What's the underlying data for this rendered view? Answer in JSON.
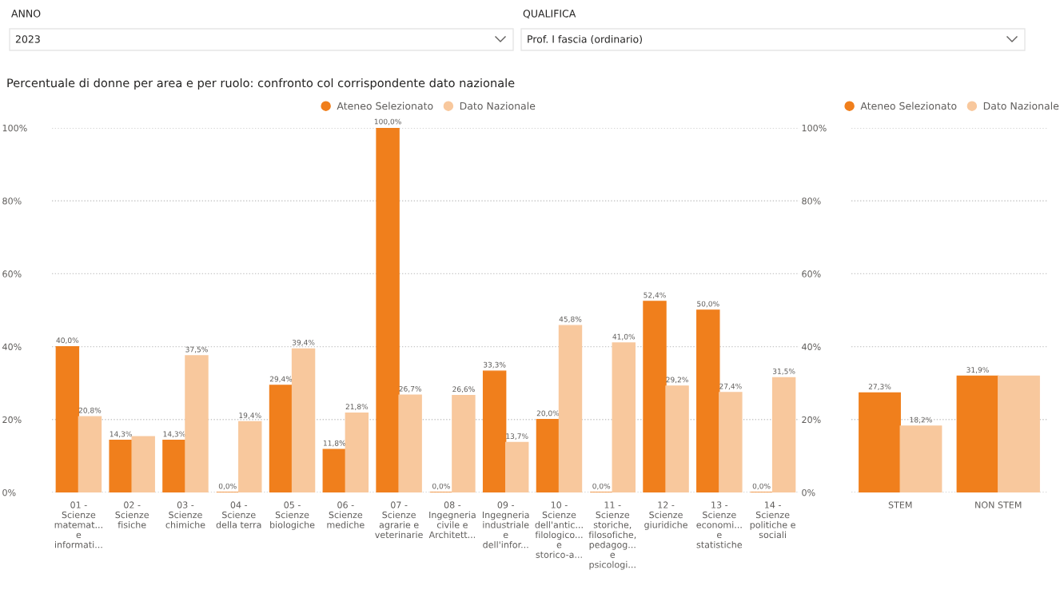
{
  "chart_data": [
    {
      "type": "other",
      "annotations": [
        "ANNO",
        "2023",
        "QUALIFICA",
        "Prof. I fascia (ordinario)"
      ]
    },
    {
      "type": "bar",
      "title": "Percentuale di donne per area e per ruolo: confronto col corrispondente dato nazionale",
      "categories": [
        "01 -\nScienze\nmatemat...\ne\ninformati...",
        "02 -\nScienze\nfisiche",
        "03 -\nScienze\nchimiche",
        "04 -\nScienze\ndella terra",
        "05 -\nScienze\nbiologiche",
        "06 -\nScienze\nmediche",
        "07 -\nScienze\nagrarie e\nveterinarie",
        "08 -\nIngegneria\ncivile e\nArchitett...",
        "09 -\nIngegneria\nindustriale\ne\ndell'infor...",
        "10 -\nScienze\ndell'antic...\nfilologico...\ne\nstorico-a...",
        "11 -\nScienze\nstoriche,\nfilosofiche,\npedagog...\ne\npsicologi...",
        "12 -\nScienze\ngiuridiche",
        "13 -\nScienze\neconomi...\ne\nstatistiche",
        "14 -\nScienze\npolitiche e\nsociali"
      ],
      "series": [
        {
          "name": "Ateneo Selezionato",
          "color": "#f07f1c",
          "values": [
            40.0,
            14.3,
            14.3,
            0.0,
            29.4,
            11.8,
            100.0,
            0.0,
            33.3,
            20.0,
            0.0,
            52.4,
            50.0,
            0.0
          ],
          "value_labels": [
            "40,0%",
            "14,3%",
            "14,3%",
            "0,0%",
            "29,4%",
            "11,8%",
            "100,0%",
            "0,0%",
            "33,3%",
            "20,0%",
            "0,0%",
            "52,4%",
            "50,0%",
            "0,0%"
          ]
        },
        {
          "name": "Dato Nazionale",
          "color": "#f8c89d",
          "values": [
            20.8,
            15.3,
            37.5,
            19.4,
            39.4,
            21.8,
            26.7,
            26.6,
            13.7,
            45.8,
            41.0,
            29.2,
            27.4,
            31.5
          ],
          "value_labels": [
            "20,8%",
            null,
            "37,5%",
            "19,4%",
            "39,4%",
            "21,8%",
            "26,7%",
            "26,6%",
            "13,7%",
            "45,8%",
            "41,0%",
            "29,2%",
            "27,4%",
            "31,5%"
          ]
        }
      ],
      "ylim": [
        0,
        100
      ],
      "yticks": [
        {
          "value": 0,
          "label": "0%"
        },
        {
          "value": 20,
          "label": "20%"
        },
        {
          "value": 40,
          "label": "40%"
        },
        {
          "value": 60,
          "label": "60%"
        },
        {
          "value": 80,
          "label": "80%"
        },
        {
          "value": 100,
          "label": "100%"
        }
      ],
      "grid": "y",
      "legend": "top"
    },
    {
      "type": "bar",
      "categories": [
        "STEM",
        "NON STEM"
      ],
      "series": [
        {
          "name": "Ateneo Selezionato",
          "color": "#f07f1c",
          "values": [
            27.3,
            31.9
          ],
          "value_labels": [
            "27,3%",
            "31,9%"
          ]
        },
        {
          "name": "Dato Nazionale",
          "color": "#f8c89d",
          "values": [
            18.2,
            31.9
          ],
          "value_labels": [
            "18,2%",
            null
          ]
        }
      ],
      "ylim": [
        0,
        100
      ],
      "yticks": [
        {
          "value": 0,
          "label": "0%"
        },
        {
          "value": 20,
          "label": "20%"
        },
        {
          "value": 40,
          "label": "40%"
        },
        {
          "value": 60,
          "label": "60%"
        },
        {
          "value": 80,
          "label": "80%"
        },
        {
          "value": 100,
          "label": "100%"
        }
      ],
      "grid": "y",
      "legend": "top"
    }
  ]
}
